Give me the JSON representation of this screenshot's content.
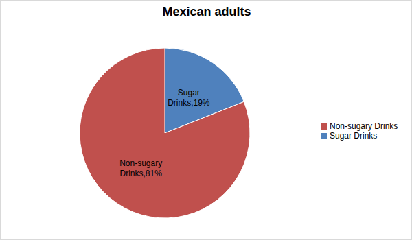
{
  "chart_data": {
    "type": "pie",
    "title": "Mexican adults",
    "categories": [
      "Sugar Drinks",
      "Non-sugary Drinks"
    ],
    "values": [
      19,
      81
    ],
    "value_labels": [
      "Sugar Drinks,19%",
      "Non-sugary Drinks,81%"
    ],
    "colors": [
      "#4f81bd",
      "#c0504d"
    ],
    "data_labels": true,
    "legend": "right"
  }
}
